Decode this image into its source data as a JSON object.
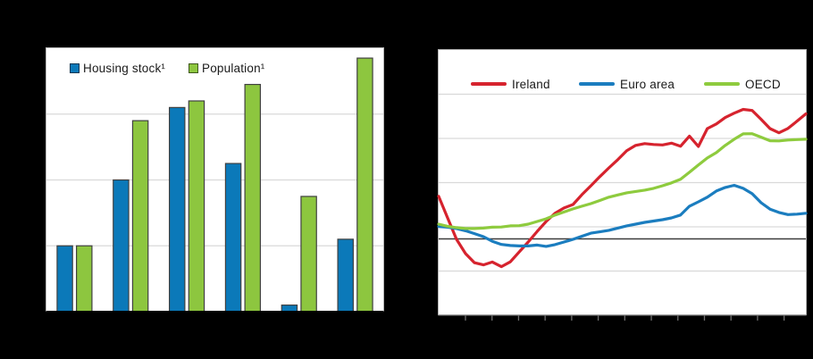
{
  "page": {
    "background": "#000000"
  },
  "colors": {
    "plot_background": "#ffffff",
    "plot_frame": "#b3b3b3",
    "gridline": "#d9d9d9",
    "axis_left_chart": "#000000",
    "axis_right_chart": "#6e6e6e",
    "bar_border": "#404040",
    "reference_line": "#3c3c3c",
    "legend_text": "#1a1a1a"
  },
  "chart_data": [
    {
      "type": "bar",
      "panel": "left",
      "title": "",
      "xlabel": "",
      "ylabel": "",
      "categories": [
        "",
        "",
        "",
        "",
        "",
        ""
      ],
      "series": [
        {
          "name": "Housing stock¹",
          "color": "#0b79b9",
          "values": [
            1.0,
            2.0,
            3.1,
            2.25,
            0.1,
            1.1
          ]
        },
        {
          "name": "Population¹",
          "color": "#8dc63f",
          "values": [
            1.0,
            2.9,
            3.2,
            3.45,
            1.75,
            3.85
          ]
        }
      ],
      "ylim": [
        0,
        4
      ],
      "y_gridlines": [
        1,
        2,
        3
      ],
      "grid": true,
      "x_axis_tick_count": 6,
      "legend_position": "top-left-inside",
      "axis_tick_labels_visible": false
    },
    {
      "type": "line",
      "panel": "right",
      "title": "",
      "xlabel": "",
      "ylabel": "",
      "x_samples": 42,
      "reference_line": 100,
      "ylim": [
        66,
        186
      ],
      "grid": true,
      "x_axis_tick_count": 13,
      "legend_position": "top-inside",
      "axis_tick_labels_visible": false,
      "series": [
        {
          "name": "Ireland",
          "color": "#d6232e",
          "values": [
            119.3,
            109.5,
            99.8,
            93.3,
            89.2,
            88.2,
            89.5,
            87.4,
            89.6,
            94.1,
            98.6,
            103.4,
            107.9,
            111.6,
            114.0,
            115.6,
            120.1,
            124.1,
            128.2,
            132.2,
            135.9,
            140.0,
            142.4,
            143.2,
            142.8,
            142.6,
            143.4,
            142.0,
            146.6,
            141.9,
            150.0,
            152.1,
            155.0,
            157.0,
            158.7,
            158.2,
            154.2,
            150.0,
            148.1,
            150.1,
            153.3,
            156.7
          ]
        },
        {
          "name": "Euro area",
          "color": "#1b7dbf",
          "values": [
            105.6,
            105.3,
            104.7,
            103.7,
            102.4,
            101.0,
            98.9,
            97.5,
            97.0,
            96.8,
            96.8,
            97.2,
            96.6,
            97.4,
            98.6,
            99.8,
            101.2,
            102.6,
            103.2,
            103.9,
            104.9,
            105.9,
            106.7,
            107.5,
            108.1,
            108.7,
            109.5,
            110.8,
            114.8,
            116.8,
            118.9,
            121.7,
            123.3,
            124.3,
            122.9,
            120.5,
            116.4,
            113.5,
            112.0,
            111.0,
            111.2,
            111.6
          ]
        },
        {
          "name": "OECD",
          "color": "#8ecb3e",
          "values": [
            106.7,
            105.7,
            105.1,
            104.7,
            104.7,
            104.9,
            105.3,
            105.4,
            105.9,
            106.0,
            106.7,
            107.9,
            109.1,
            110.8,
            112.2,
            113.6,
            114.8,
            116.0,
            117.4,
            118.9,
            119.9,
            120.9,
            121.5,
            122.1,
            122.9,
            124.1,
            125.4,
            127.0,
            130.2,
            133.5,
            136.7,
            139.1,
            142.4,
            145.2,
            147.6,
            147.7,
            146.1,
            144.5,
            144.4,
            144.8,
            145.0,
            145.2
          ]
        }
      ]
    }
  ]
}
